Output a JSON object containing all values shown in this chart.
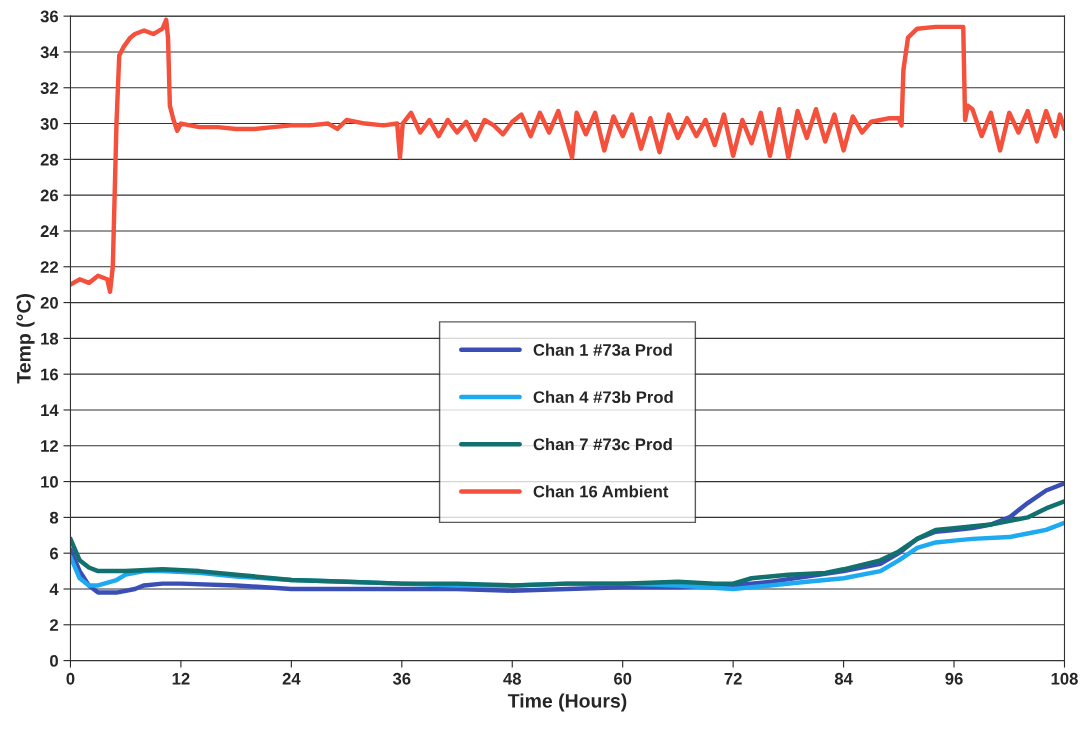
{
  "chart_data": {
    "type": "line",
    "xlabel": "Time (Hours)",
    "ylabel": "Temp (°C)",
    "xlim": [
      0,
      108
    ],
    "xticks": [
      0,
      12,
      24,
      36,
      48,
      60,
      72,
      84,
      96,
      108
    ],
    "ylim": [
      0,
      36
    ],
    "yticks": [
      0,
      2,
      4,
      6,
      8,
      10,
      12,
      14,
      16,
      18,
      20,
      22,
      24,
      26,
      28,
      30,
      32,
      34,
      36
    ],
    "grid": "y",
    "legend": "center",
    "line_style": "solid",
    "marker": "none",
    "series": [
      {
        "name": "Chan 1 #73a Prod",
        "color": "#3a4fb5",
        "x": [
          0,
          1,
          2,
          3,
          5,
          7,
          8,
          10,
          12,
          18,
          24,
          30,
          36,
          42,
          48,
          54,
          60,
          66,
          72,
          76,
          80,
          84,
          88,
          90,
          92,
          94,
          96,
          98,
          100,
          102,
          104,
          106,
          108
        ],
        "values": [
          6.2,
          5.0,
          4.2,
          3.8,
          3.8,
          4.0,
          4.2,
          4.3,
          4.3,
          4.2,
          4.0,
          4.0,
          4.0,
          4.0,
          3.9,
          4.0,
          4.1,
          4.1,
          4.2,
          4.4,
          4.7,
          5.0,
          5.4,
          6.0,
          6.8,
          7.2,
          7.3,
          7.4,
          7.6,
          8.0,
          8.8,
          9.5,
          9.9
        ]
      },
      {
        "name": "Chan 4 #73b Prod",
        "color": "#1eaaf0",
        "x": [
          0,
          1,
          2,
          3,
          5,
          6,
          8,
          10,
          14,
          18,
          24,
          30,
          36,
          42,
          48,
          54,
          60,
          66,
          72,
          76,
          80,
          84,
          88,
          90,
          92,
          94,
          96,
          98,
          102,
          104,
          106,
          108
        ],
        "values": [
          5.8,
          4.6,
          4.2,
          4.2,
          4.5,
          4.8,
          5.0,
          5.0,
          4.9,
          4.7,
          4.5,
          4.4,
          4.3,
          4.2,
          4.2,
          4.3,
          4.3,
          4.2,
          4.0,
          4.2,
          4.4,
          4.6,
          5.0,
          5.6,
          6.3,
          6.6,
          6.7,
          6.8,
          6.9,
          7.1,
          7.3,
          7.7
        ]
      },
      {
        "name": "Chan 7 #73c Prod",
        "color": "#12706e",
        "x": [
          0,
          1,
          2,
          3,
          6,
          10,
          14,
          18,
          22,
          24,
          30,
          36,
          42,
          48,
          54,
          60,
          66,
          70,
          72,
          74,
          78,
          82,
          84,
          88,
          90,
          92,
          94,
          96,
          100,
          104,
          106,
          108
        ],
        "values": [
          6.8,
          5.6,
          5.2,
          5.0,
          5.0,
          5.1,
          5.0,
          4.8,
          4.6,
          4.5,
          4.4,
          4.3,
          4.3,
          4.2,
          4.3,
          4.3,
          4.4,
          4.3,
          4.3,
          4.6,
          4.8,
          4.9,
          5.1,
          5.6,
          6.1,
          6.8,
          7.3,
          7.4,
          7.6,
          8.0,
          8.5,
          8.9
        ]
      },
      {
        "name": "Chan 16 Ambient",
        "color": "#f5503c",
        "x": [
          0,
          1,
          2,
          3,
          4,
          4.3,
          4.6,
          5,
          5.3,
          5.8,
          6.5,
          7,
          8,
          9,
          10,
          10.4,
          10.6,
          10.8,
          11.2,
          11.6,
          12,
          14,
          16,
          18,
          20,
          22,
          24,
          26,
          28,
          29,
          30,
          32,
          34,
          35.5,
          35.8,
          36.1,
          37,
          38,
          39,
          40,
          41,
          42,
          43,
          44,
          45,
          46,
          47,
          48,
          49,
          50,
          51,
          52,
          53,
          54,
          54.5,
          55,
          56,
          57,
          58,
          59,
          60,
          61,
          62,
          63,
          64,
          65,
          66,
          67,
          68,
          69,
          70,
          71,
          72,
          73,
          74,
          75,
          76,
          77,
          78,
          79,
          80,
          81,
          82,
          83,
          84,
          85,
          86,
          87,
          88,
          89,
          90,
          90.3,
          90.5,
          91,
          92,
          94,
          96,
          97,
          97.2,
          97.5,
          98,
          99,
          100,
          101,
          102,
          103,
          104,
          105,
          106,
          107,
          107.5,
          108
        ],
        "values": [
          21.0,
          21.3,
          21.1,
          21.5,
          21.3,
          20.6,
          22,
          30,
          33.8,
          34.3,
          34.8,
          35.0,
          35.2,
          35.0,
          35.3,
          35.8,
          34.8,
          31,
          30.2,
          29.6,
          30.0,
          29.8,
          29.8,
          29.7,
          29.7,
          29.8,
          29.9,
          29.9,
          30.0,
          29.7,
          30.2,
          30.0,
          29.9,
          30.0,
          28.1,
          30.0,
          30.6,
          29.5,
          30.2,
          29.3,
          30.2,
          29.5,
          30.1,
          29.1,
          30.2,
          29.9,
          29.4,
          30.1,
          30.5,
          29.3,
          30.6,
          29.5,
          30.7,
          29.0,
          28.1,
          30.6,
          29.4,
          30.6,
          28.5,
          30.4,
          29.3,
          30.5,
          28.6,
          30.3,
          28.4,
          30.5,
          29.2,
          30.3,
          29.3,
          30.2,
          28.8,
          30.5,
          28.2,
          30.2,
          28.9,
          30.6,
          28.2,
          30.8,
          28.1,
          30.7,
          29.2,
          30.8,
          29.0,
          30.5,
          28.5,
          30.4,
          29.5,
          30.1,
          30.2,
          30.3,
          30.3,
          29.9,
          33,
          34.8,
          35.3,
          35.4,
          35.4,
          35.4,
          30.2,
          31,
          30.8,
          29.3,
          30.6,
          28.5,
          30.6,
          29.5,
          30.7,
          29.0,
          30.7,
          29.3,
          30.5,
          29.7
        ]
      }
    ]
  }
}
